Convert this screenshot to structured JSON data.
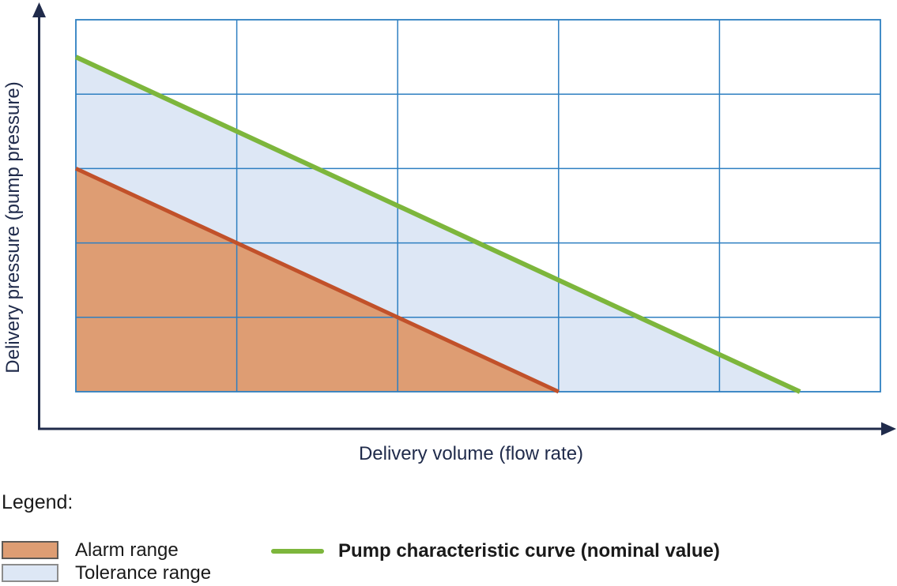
{
  "chart_data": {
    "type": "area",
    "title": "",
    "xlabel": "Delivery volume (flow rate)",
    "ylabel": "Delivery pressure (pump pressure)",
    "xlim": [
      0,
      5
    ],
    "ylim": [
      0,
      5
    ],
    "grid": {
      "on": true,
      "x_divisions": 5,
      "y_divisions": 5,
      "color": "#2e7fc1",
      "border_color": "#2e7fc1"
    },
    "axis_color": "#202b4b",
    "regions": [
      {
        "id": "tolerance-range-area",
        "name": "Tolerance range",
        "fill": "#dde7f5",
        "points": [
          [
            0,
            3
          ],
          [
            0,
            4.5
          ],
          [
            4.5,
            0
          ],
          [
            3,
            0
          ]
        ]
      },
      {
        "id": "alarm-range-area",
        "name": "Alarm range",
        "fill": "#de9d73",
        "points": [
          [
            0,
            0
          ],
          [
            0,
            3
          ],
          [
            3,
            0
          ]
        ]
      }
    ],
    "series": [
      {
        "id": "alarm-boundary-line",
        "name": "Alarm range upper boundary",
        "color": "#c1512a",
        "width": 5,
        "points": [
          [
            0,
            3
          ],
          [
            3,
            0
          ]
        ]
      },
      {
        "id": "nominal-curve-line",
        "name": "Pump characteristic curve (nominal value)",
        "color": "#7db63c",
        "width": 6,
        "points": [
          [
            0,
            4.5
          ],
          [
            4.5,
            0
          ]
        ]
      }
    ],
    "legend_position": "bottom-left"
  },
  "legend": {
    "title": "Legend:",
    "items": [
      {
        "label": "Alarm range",
        "swatch_type": "box",
        "swatch_fill": "#de9d73",
        "swatch_border": "#5f5a56"
      },
      {
        "label": "Tolerance range",
        "swatch_type": "box",
        "swatch_fill": "#dde7f5",
        "swatch_border": "#8c8c8c"
      },
      {
        "label": "Pump characteristic curve (nominal value)",
        "swatch_type": "line",
        "swatch_fill": "#7db63c"
      }
    ]
  }
}
